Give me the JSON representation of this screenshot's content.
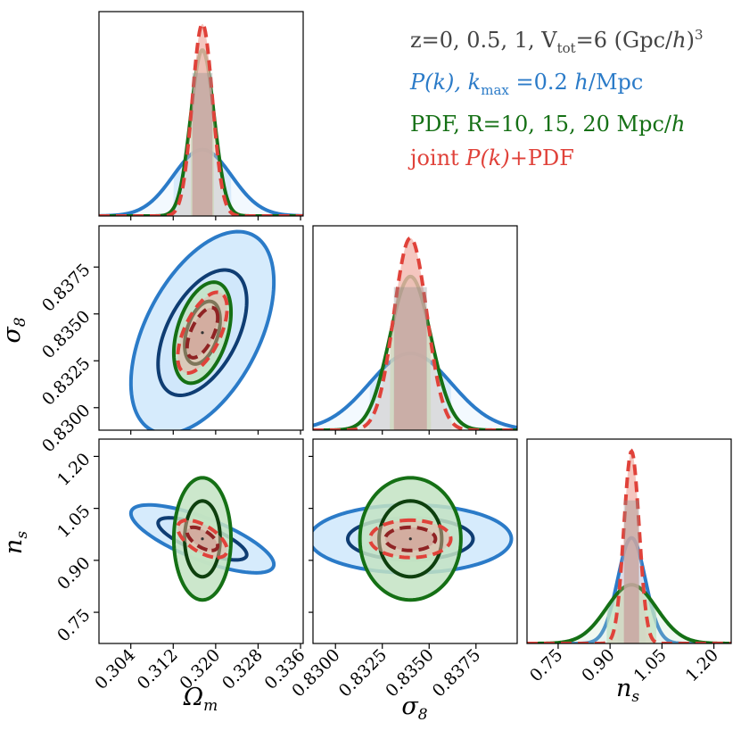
{
  "legend": {
    "entry_z": "z=0, 0.5, 1, V",
    "entry_z_sub": "tot",
    "entry_z_tail": "=6 (Gpc/",
    "entry_z_h": "h",
    "entry_z_end": ")",
    "entry_z_sup": "3",
    "entry_pk_a": "P(k), k",
    "entry_pk_sub": "max",
    "entry_pk_b": " =0.2 ",
    "entry_pk_h": "h",
    "entry_pk_c": "/Mpc",
    "entry_pdf_a": "PDF, R=10, 15, 20 Mpc/",
    "entry_pdf_h": "h",
    "entry_joint_a": "joint ",
    "entry_joint_b": "P(k)",
    "entry_joint_c": "+PDF"
  },
  "colors": {
    "pk": "#2b7bc8",
    "pk_fill": "#cfe7fb",
    "pk_inner": "#0f3d73",
    "pdf": "#157015",
    "pdf_fill": "#c3e3c3",
    "pdf_inner": "#0e3f0e",
    "joint": "#e0423a",
    "joint_inner": "#8f2324"
  },
  "chart_data": {
    "type": "corner",
    "parameters": [
      {
        "key": "om",
        "label": "Ω_m",
        "symbol": "Ω",
        "sub": "m",
        "range": [
          0.298,
          0.3365
        ],
        "ticks": [
          0.304,
          0.312,
          0.32,
          0.328,
          0.336
        ],
        "tick_labels": [
          "0.304",
          "0.312",
          "0.320",
          "0.328",
          "0.336"
        ],
        "fiducial": 0.3175
      },
      {
        "key": "s8",
        "label": "σ_8",
        "symbol": "σ",
        "sub": "8",
        "range": [
          0.8288,
          0.8397
        ],
        "ticks": [
          0.83,
          0.8325,
          0.835,
          0.8375
        ],
        "tick_labels": [
          "0.8300",
          "0.8325",
          "0.8350",
          "0.8375"
        ],
        "fiducial": 0.834
      },
      {
        "key": "ns",
        "label": "n_s",
        "symbol": "n",
        "sub": "s",
        "range": [
          0.66,
          1.25
        ],
        "ticks": [
          0.75,
          0.9,
          1.05,
          1.2
        ],
        "tick_labels": [
          "0.75",
          "0.90",
          "1.05",
          "1.20"
        ],
        "fiducial": 0.962
      }
    ],
    "series": [
      {
        "name": "P(k), kmax=0.2 h/Mpc",
        "color_key": "pk",
        "sigma": {
          "om": 0.0055,
          "s8": 0.0022,
          "ns": 0.04
        },
        "corr": {
          "om_s8": 0.5,
          "om_ns": -0.75,
          "s8_ns": 0.0
        },
        "dashed": false
      },
      {
        "name": "PDF, R=10, 15, 20 Mpc/h",
        "color_key": "pdf",
        "sigma": {
          "om": 0.0022,
          "s8": 0.0011,
          "ns": 0.072
        },
        "corr": {
          "om_s8": 0.4,
          "om_ns": 0.0,
          "s8_ns": 0.0
        },
        "dashed": false
      },
      {
        "name": "joint P(k)+PDF",
        "color_key": "joint",
        "sigma": {
          "om": 0.0019,
          "s8": 0.00088,
          "ns": 0.022
        },
        "corr": {
          "om_s8": 0.6,
          "om_ns": -0.6,
          "s8_ns": 0.0
        },
        "dashed": true
      }
    ],
    "contour_levels": [
      "68%",
      "95%"
    ]
  }
}
